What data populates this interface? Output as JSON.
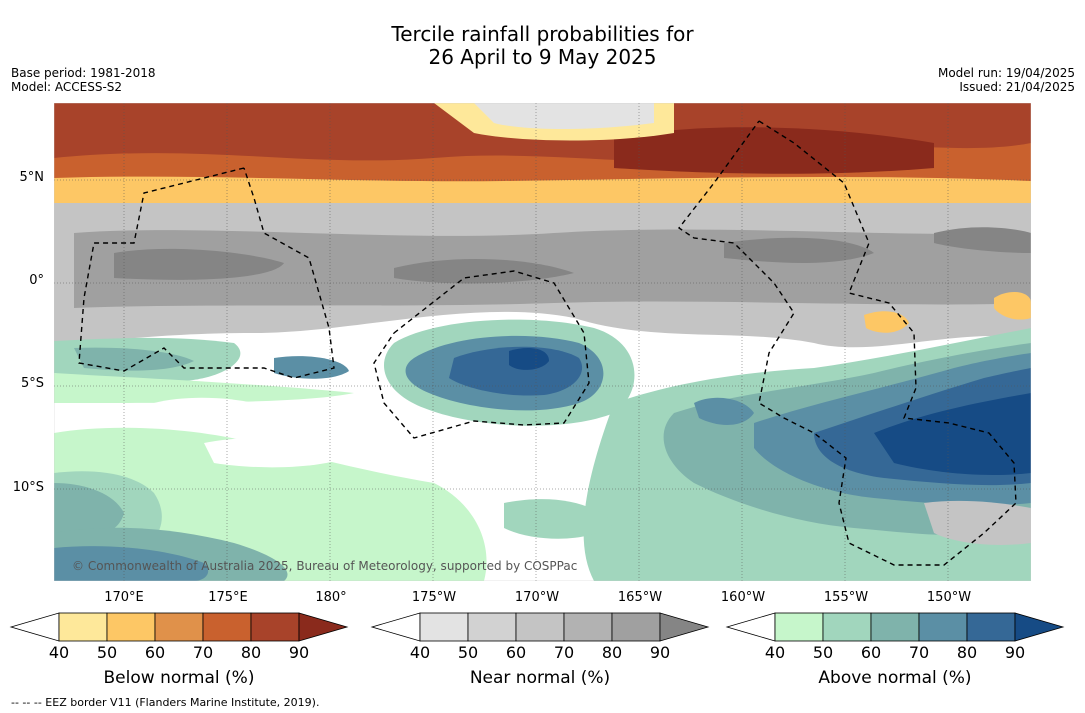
{
  "title": {
    "line1": "Tercile rainfall probabilities for",
    "line2": "26 April to 9 May 2025"
  },
  "meta_left": {
    "base_period": "Base period: 1981-2018",
    "model": "Model: ACCESS-S2"
  },
  "meta_right": {
    "model_run": "Model run: 19/04/2025",
    "issued": "Issued: 21/04/2025"
  },
  "map": {
    "latitude_labels": [
      "5°N",
      "0°",
      "5°S",
      "10°S"
    ],
    "longitude_labels": [
      "170°E",
      "175°E",
      "180°",
      "175°W",
      "170°W",
      "165°W",
      "160°W",
      "155°W",
      "150°W"
    ],
    "credit": "© Commonwealth of Australia 2025, Bureau of Meteorology, supported by COSPPac"
  },
  "colorbars": [
    {
      "label": "Below normal (%)",
      "ticks": [
        "40",
        "50",
        "60",
        "70",
        "80",
        "90"
      ],
      "colors": [
        "#ffffff",
        "#fee89a",
        "#fdc765",
        "#e0914a",
        "#c9612e",
        "#a8432a",
        "#8a2a1c"
      ]
    },
    {
      "label": "Near normal (%)",
      "ticks": [
        "40",
        "50",
        "60",
        "70",
        "80",
        "90"
      ],
      "colors": [
        "#ffffff",
        "#e3e3e3",
        "#d2d2d2",
        "#c4c4c4",
        "#b2b2b2",
        "#a0a0a0",
        "#858585"
      ]
    },
    {
      "label": "Above normal (%)",
      "ticks": [
        "40",
        "50",
        "60",
        "70",
        "80",
        "90"
      ],
      "colors": [
        "#ffffff",
        "#c6f6cb",
        "#a1d6bd",
        "#7fb3ab",
        "#5b8fa5",
        "#356896",
        "#164b85"
      ]
    }
  ],
  "footer": "--  --  -- EEZ border V11 (Flanders Marine Institute, 2019)."
}
